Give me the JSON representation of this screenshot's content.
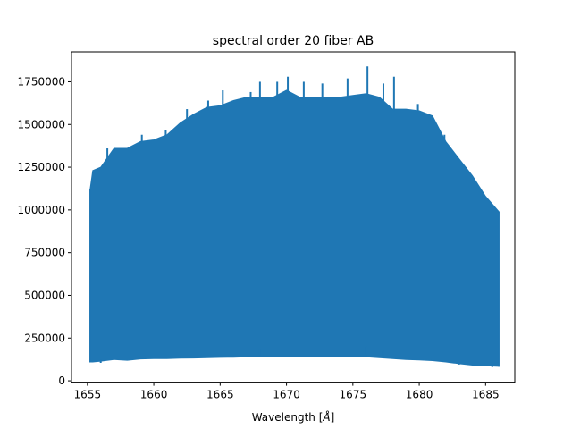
{
  "chart_data": {
    "type": "line",
    "title": "spectral order 20 fiber AB",
    "xlabel": "Wavelength [",
    "xlabel_unit": "Å",
    "xlabel_close": "]",
    "ylabel": "",
    "xlim": [
      1653.8,
      1687.2
    ],
    "ylim": [
      -8000,
      1925000
    ],
    "x_ticks": [
      1655,
      1660,
      1665,
      1670,
      1675,
      1680,
      1685
    ],
    "x_tick_labels": [
      "1655",
      "1660",
      "1665",
      "1670",
      "1675",
      "1680",
      "1685"
    ],
    "y_ticks": [
      0,
      250000,
      500000,
      750000,
      1000000,
      1250000,
      1500000,
      1750000
    ],
    "y_tick_labels": [
      "0",
      "250000",
      "500000",
      "750000",
      "1000000",
      "1250000",
      "1500000",
      "1750000"
    ],
    "grid": false,
    "legend": "none",
    "series_color": "#1f77b4",
    "series": [
      {
        "x": [
          1655.2,
          1655.4,
          1656.0,
          1657.0,
          1658.0,
          1659.0,
          1660.0,
          1661.0,
          1662.0,
          1663.0,
          1664.0,
          1665.0,
          1666.0,
          1667.0,
          1668.0,
          1669.0,
          1670.0,
          1671.0,
          1672.0,
          1673.0,
          1674.0,
          1675.0,
          1676.0,
          1677.0,
          1678.0,
          1679.0,
          1680.0,
          1681.0,
          1682.0,
          1683.0,
          1684.0,
          1685.0,
          1686.0
        ],
        "upper": [
          1120000,
          1230000,
          1250000,
          1360000,
          1360000,
          1400000,
          1410000,
          1440000,
          1510000,
          1560000,
          1600000,
          1610000,
          1640000,
          1660000,
          1660000,
          1660000,
          1700000,
          1660000,
          1660000,
          1660000,
          1660000,
          1670000,
          1680000,
          1660000,
          1590000,
          1590000,
          1580000,
          1550000,
          1400000,
          1300000,
          1200000,
          1080000,
          990000
        ],
        "lower": [
          110000,
          110000,
          115000,
          125000,
          120000,
          128000,
          130000,
          130000,
          132000,
          133000,
          135000,
          137000,
          138000,
          140000,
          140000,
          140000,
          140000,
          140000,
          140000,
          140000,
          140000,
          140000,
          140000,
          135000,
          130000,
          125000,
          122000,
          118000,
          110000,
          100000,
          92000,
          88000,
          85000
        ]
      }
    ],
    "peaks": [
      {
        "x": 1656.5,
        "y": 1360000
      },
      {
        "x": 1659.1,
        "y": 1440000
      },
      {
        "x": 1660.9,
        "y": 1470000
      },
      {
        "x": 1662.5,
        "y": 1590000
      },
      {
        "x": 1664.1,
        "y": 1640000
      },
      {
        "x": 1665.2,
        "y": 1700000
      },
      {
        "x": 1667.3,
        "y": 1690000
      },
      {
        "x": 1668.0,
        "y": 1750000
      },
      {
        "x": 1669.3,
        "y": 1750000
      },
      {
        "x": 1670.1,
        "y": 1780000
      },
      {
        "x": 1671.3,
        "y": 1750000
      },
      {
        "x": 1672.7,
        "y": 1740000
      },
      {
        "x": 1674.6,
        "y": 1770000
      },
      {
        "x": 1676.1,
        "y": 1840000
      },
      {
        "x": 1677.3,
        "y": 1740000
      },
      {
        "x": 1678.1,
        "y": 1780000
      },
      {
        "x": 1679.9,
        "y": 1620000
      },
      {
        "x": 1681.9,
        "y": 1440000
      },
      {
        "x": 1683.5,
        "y": 1250000
      },
      {
        "x": 1684.7,
        "y": 1060000
      }
    ],
    "dips": [
      {
        "x": 1656.0,
        "y": 105000
      },
      {
        "x": 1668.0,
        "y": 185000
      },
      {
        "x": 1676.0,
        "y": 200000
      },
      {
        "x": 1677.3,
        "y": 175000
      },
      {
        "x": 1683.0,
        "y": 95000
      },
      {
        "x": 1685.5,
        "y": 80000
      }
    ]
  }
}
